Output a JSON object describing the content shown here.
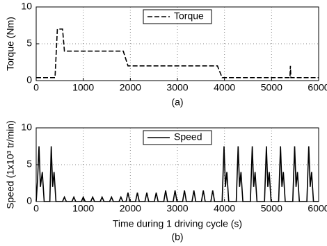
{
  "chart_data": [
    {
      "type": "line",
      "caption": "(a)",
      "ylabel": "Torque (Nm)",
      "x": [
        0,
        400,
        450,
        560,
        600,
        1850,
        1950,
        3850,
        3950,
        5390,
        5400,
        5410,
        6000
      ],
      "series": [
        {
          "name": "Torque",
          "color": "#000000",
          "linestyle": "dashed",
          "values": [
            0.4,
            0.4,
            7,
            7,
            4,
            4,
            2,
            2,
            0.4,
            0.4,
            2,
            0.4,
            0.4
          ]
        }
      ],
      "xlim": [
        0,
        6000
      ],
      "xticks": [
        0,
        1000,
        2000,
        3000,
        4000,
        5000,
        6000
      ],
      "ylim": [
        0,
        10
      ],
      "yticks": [
        0,
        5,
        10
      ],
      "grid": true,
      "legend": "upper center"
    },
    {
      "type": "line",
      "caption": "(b)",
      "ylabel": "Speed (1x10³ tr/min)",
      "xlabel": "Time during 1 driving cycle (s)",
      "x": [
        0,
        30,
        60,
        90,
        130,
        170,
        290,
        320,
        350,
        380,
        420,
        560,
        600,
        640,
        760,
        800,
        840,
        960,
        1000,
        1040,
        1160,
        1200,
        1240,
        1360,
        1400,
        1440,
        1560,
        1600,
        1640,
        1760,
        1800,
        1840,
        1910,
        1950,
        1990,
        2110,
        2150,
        2190,
        2310,
        2350,
        2390,
        2510,
        2550,
        2590,
        2710,
        2750,
        2790,
        2910,
        2950,
        2990,
        3110,
        3150,
        3190,
        3310,
        3350,
        3390,
        3510,
        3550,
        3590,
        3710,
        3750,
        3790,
        3950,
        3990,
        4020,
        4050,
        4090,
        4250,
        4290,
        4320,
        4350,
        4390,
        4550,
        4590,
        4620,
        4650,
        4690,
        4850,
        4890,
        4920,
        4950,
        4990,
        5150,
        5190,
        5220,
        5250,
        5290,
        5450,
        5490,
        5520,
        5550,
        5590,
        5750,
        5790,
        5820,
        5850,
        5890,
        6000
      ],
      "series": [
        {
          "name": "Speed",
          "color": "#000000",
          "linestyle": "solid",
          "values": [
            0,
            3,
            7.5,
            2,
            4,
            0,
            0,
            7.5,
            2,
            4,
            0,
            0,
            0.6,
            0,
            0,
            0.6,
            0,
            0,
            0.6,
            0,
            0,
            0.6,
            0,
            0,
            0.6,
            0,
            0,
            0.6,
            0,
            0,
            0.6,
            0,
            0,
            1.2,
            0,
            0,
            1.2,
            0,
            0,
            1.2,
            0,
            0,
            1.2,
            0,
            0,
            1.5,
            0,
            0,
            1.5,
            0,
            0,
            1.5,
            0,
            0,
            1.5,
            0,
            0,
            1.5,
            0,
            0,
            1.5,
            0,
            0,
            7.5,
            2,
            4,
            0,
            0,
            7.5,
            2,
            4,
            0,
            0,
            7.5,
            2,
            4,
            0,
            0,
            7.5,
            2,
            4,
            0,
            0,
            7.5,
            2,
            4,
            0,
            0,
            7.5,
            2,
            4,
            0,
            0,
            7.5,
            2,
            4,
            0,
            0
          ]
        }
      ],
      "xlim": [
        0,
        6000
      ],
      "xticks": [
        0,
        1000,
        2000,
        3000,
        4000,
        5000,
        6000
      ],
      "ylim": [
        0,
        10
      ],
      "yticks": [
        0,
        5,
        10
      ],
      "grid": true,
      "legend": "upper center"
    }
  ]
}
